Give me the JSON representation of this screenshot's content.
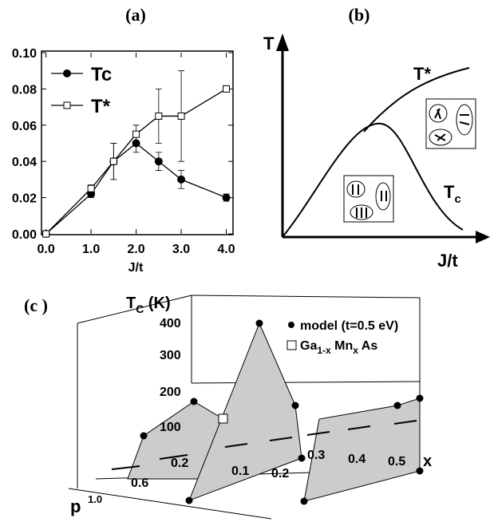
{
  "chart_data": {
    "type": "line",
    "title": "(a)",
    "xlabel": "J/t",
    "x": [
      0,
      1,
      1.5,
      2,
      2.5,
      3,
      4
    ],
    "series": [
      {
        "name": "Tc",
        "color": "#000000",
        "marker": "circle",
        "values": [
          0,
          0.022,
          0.04,
          0.05,
          0.04,
          0.03,
          0.02
        ],
        "errors": [
          0,
          0.002,
          0.01,
          0.005,
          0.005,
          0.005,
          0.002
        ]
      },
      {
        "name": "T*",
        "color": "#000000",
        "marker": "square",
        "values": [
          0,
          0.025,
          0.04,
          0.055,
          0.065,
          0.065,
          0.08
        ],
        "errors": [
          0,
          0.002,
          0.01,
          0.005,
          0.015,
          0.025,
          0
        ]
      }
    ],
    "xlim": [
      -0.1,
      4.15
    ],
    "ylim": [
      0,
      0.1
    ],
    "xticks": [
      {
        "value": 0,
        "label": "0.0"
      },
      {
        "value": 1,
        "label": "1.0"
      },
      {
        "value": 2,
        "label": "2.0"
      },
      {
        "value": 3,
        "label": "3.0"
      },
      {
        "value": 4,
        "label": "4.0"
      }
    ],
    "yticks": [
      {
        "value": 0,
        "label": "0.00"
      },
      {
        "value": 0.02,
        "label": "0.02"
      },
      {
        "value": 0.04,
        "label": "0.04"
      },
      {
        "value": 0.06,
        "label": "0.06"
      },
      {
        "value": 0.08,
        "label": "0.08"
      },
      {
        "value": 0.1,
        "label": "0.10"
      }
    ],
    "legend": "upper left"
  },
  "panel_b": {
    "title": "(b)",
    "ylabel": "T",
    "xlabel": "J/t",
    "upper_curve": "T*",
    "lower_curve": [
      "T",
      "c"
    ]
  },
  "panel_c": {
    "title": "(c )",
    "zlabel": [
      "T",
      "C",
      " (K)"
    ],
    "zticks": [
      "400",
      "300",
      "200",
      "100"
    ],
    "xlabel": "x",
    "xticks": [
      "0.1",
      "0.2",
      "0.3",
      "0.4",
      "0.5"
    ],
    "pticks": [
      "0.2",
      "0.6",
      "1.0"
    ],
    "plabel": "p",
    "legend": [
      "model (t=0.5 eV)",
      [
        "Ga",
        "1-x",
        " Mn",
        "x",
        " As"
      ]
    ]
  }
}
